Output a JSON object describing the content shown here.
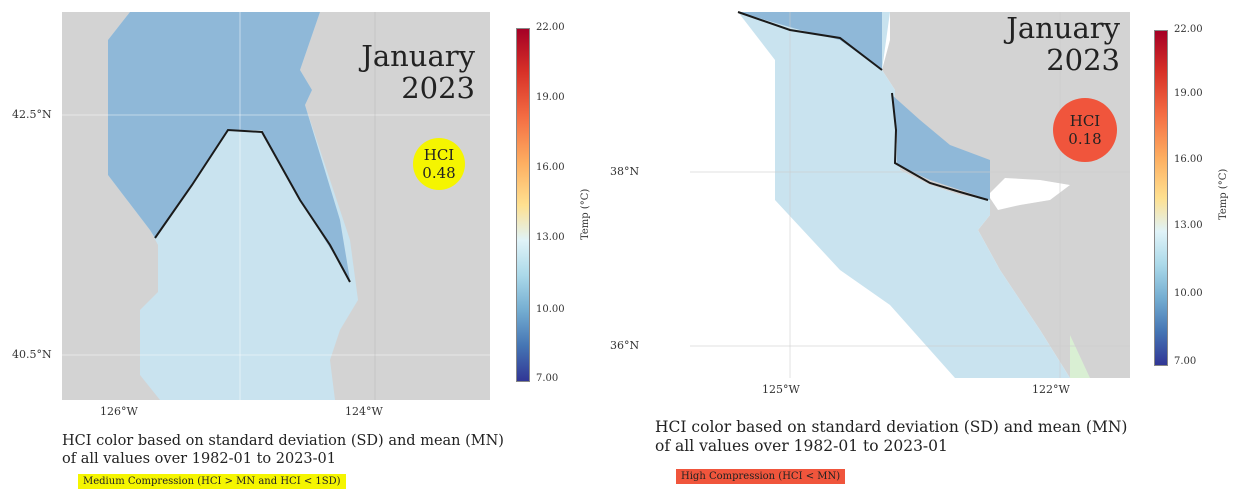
{
  "left": {
    "month": "January",
    "year": "2023",
    "hci_label": "HCI",
    "hci_value": "0.48",
    "hci_color": "#f5f500",
    "lat_ticks": [
      "42.5°N",
      "40.5°N"
    ],
    "lon_ticks": [
      "126°W",
      "124°W"
    ],
    "colorbar_ticks": [
      "22.00",
      "19.00",
      "16.00",
      "13.00",
      "10.00",
      "7.00"
    ],
    "colorbar_title": "Temp (°C)",
    "caption_line1": "HCI color based on standard deviation (SD) and mean (MN)",
    "caption_line2": "of all values over 1982-01 to 2023-01",
    "category": "Medium Compression (HCI > MN and HCI < 1SD)",
    "category_color": "#f5f500"
  },
  "right": {
    "month": "January",
    "year": "2023",
    "hci_label": "HCI",
    "hci_value": "0.18",
    "hci_color": "#f0553c",
    "lat_ticks": [
      "38°N",
      "36°N"
    ],
    "lon_ticks": [
      "125°W",
      "122°W"
    ],
    "colorbar_ticks": [
      "22.00",
      "19.00",
      "16.00",
      "13.00",
      "10.00",
      "7.00"
    ],
    "colorbar_title": "Temp (°C)",
    "caption_line1": "HCI color based on standard deviation (SD) and mean (MN)",
    "caption_line2": "of all values over 1982-01 to 2023-01",
    "category": "High Compression (HCI < MN)",
    "category_color": "#f0553c"
  },
  "colors": {
    "land": "#d3d3d3",
    "ocean_warm": "#c9e3ef",
    "ocean_cool": "#8fb8d8",
    "front_line": "#1a1a1a",
    "coastal_patch": "#d9efd3"
  }
}
